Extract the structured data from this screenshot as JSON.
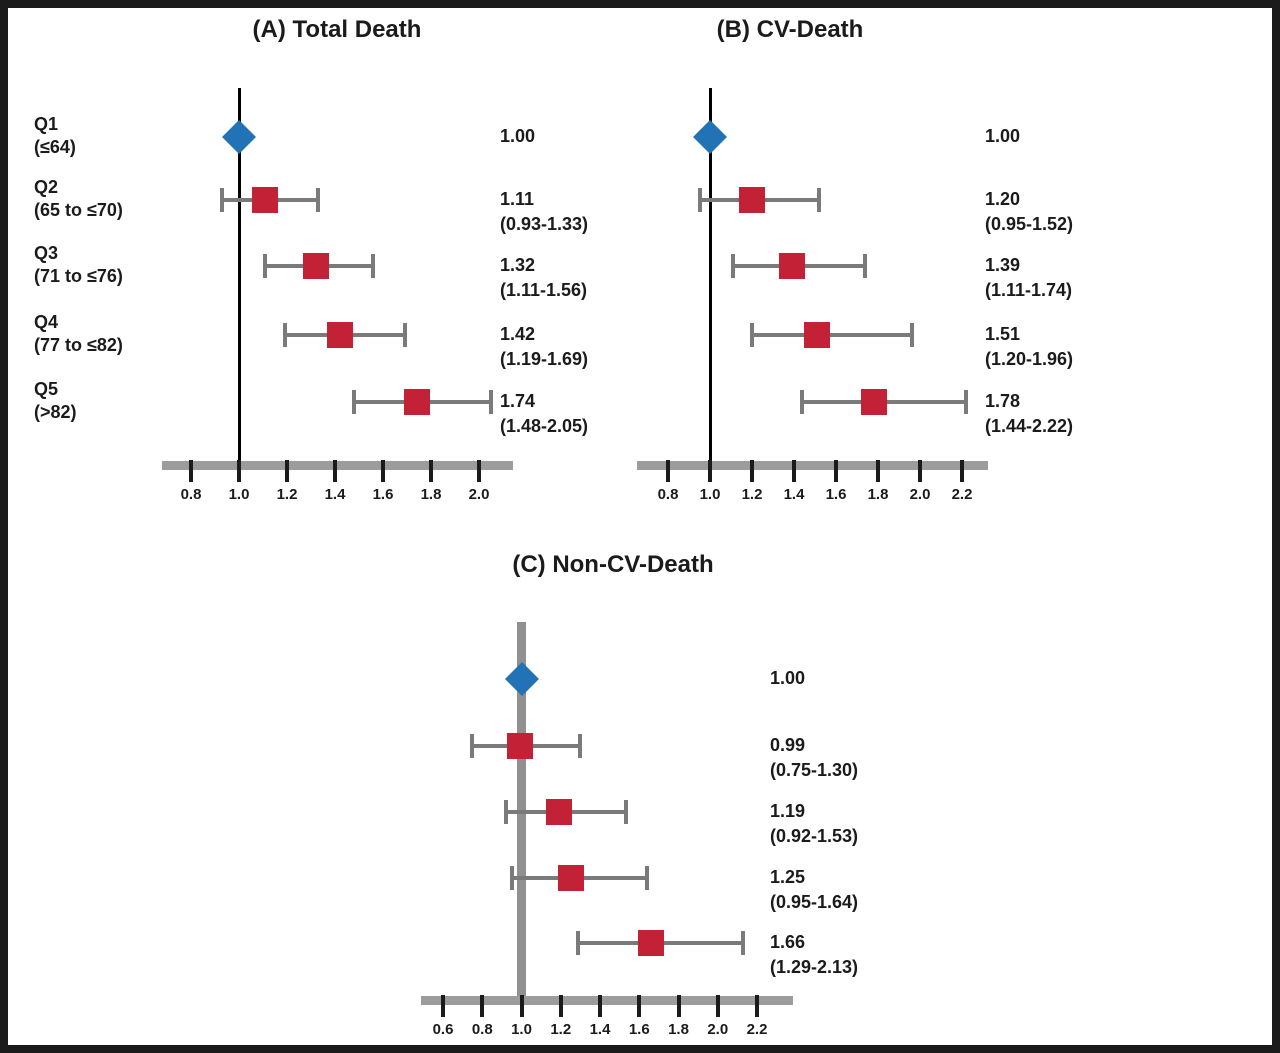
{
  "figure": {
    "type": "forest-plot-figure",
    "background": "#ffffff",
    "frame_color": "#1b1b1b",
    "colors": {
      "reference_diamond": "#2173b6",
      "estimate_square": "#c32136",
      "whisker": "#7a7a7a",
      "axis_bar": "#9c9c9c",
      "tick": "#1b1b1b",
      "text": "#1b1b1b",
      "reference_line": "#000000",
      "reference_line_panel_c": "#909090"
    }
  },
  "chart_data": [
    {
      "type": "scatter",
      "subtype": "forest",
      "title": "(A) Total Death",
      "categories": [
        "Q1 (≤64)",
        "Q2 (65 to ≤70)",
        "Q3 (71 to ≤76)",
        "Q4 (77 to ≤82)",
        "Q5 (>82)"
      ],
      "row_label_lines": [
        [
          "Q1",
          "(≤64)"
        ],
        [
          "Q2",
          "(65 to ≤70)"
        ],
        [
          "Q3",
          "(71 to ≤76)"
        ],
        [
          "Q4",
          "(77 to ≤82)"
        ],
        [
          "Q5",
          "(>82)"
        ]
      ],
      "estimates": [
        1.0,
        1.11,
        1.32,
        1.42,
        1.74
      ],
      "ci_low": [
        null,
        0.93,
        1.11,
        1.19,
        1.48
      ],
      "ci_high": [
        null,
        1.33,
        1.56,
        1.69,
        2.05
      ],
      "value_labels": [
        "1.00",
        "1.11",
        "1.32",
        "1.42",
        "1.74"
      ],
      "ci_labels": [
        "",
        "(0.93-1.33)",
        "(1.11-1.56)",
        "(1.19-1.69)",
        "(1.48-2.05)"
      ],
      "marker_types": [
        "diamond",
        "square",
        "square",
        "square",
        "square"
      ],
      "xtick_values": [
        0.8,
        1.0,
        1.2,
        1.4,
        1.6,
        1.8,
        2.0
      ],
      "xtick_labels": [
        "0.8",
        "1.0",
        "1.2",
        "1.4",
        "1.6",
        "1.8",
        "2.0"
      ],
      "xlim": [
        0.68,
        2.14
      ],
      "ref_value": 1.0,
      "grid": false,
      "legend": false
    },
    {
      "type": "scatter",
      "subtype": "forest",
      "title": "(B) CV-Death",
      "categories": [
        "Q1 (≤64)",
        "Q2 (65 to ≤70)",
        "Q3 (71 to ≤76)",
        "Q4 (77 to ≤82)",
        "Q5 (>82)"
      ],
      "estimates": [
        1.0,
        1.2,
        1.39,
        1.51,
        1.78
      ],
      "ci_low": [
        null,
        0.95,
        1.11,
        1.2,
        1.44
      ],
      "ci_high": [
        null,
        1.52,
        1.74,
        1.96,
        2.22
      ],
      "value_labels": [
        "1.00",
        "1.20",
        "1.39",
        "1.51",
        "1.78"
      ],
      "ci_labels": [
        "",
        "(0.95-1.52)",
        "(1.11-1.74)",
        "(1.20-1.96)",
        "(1.44-2.22)"
      ],
      "marker_types": [
        "diamond",
        "square",
        "square",
        "square",
        "square"
      ],
      "xtick_values": [
        0.8,
        1.0,
        1.2,
        1.4,
        1.6,
        1.8,
        2.0,
        2.2
      ],
      "xtick_labels": [
        "0.8",
        "1.0",
        "1.2",
        "1.4",
        "1.6",
        "1.8",
        "2.0",
        "2.2"
      ],
      "xlim": [
        0.7,
        2.32
      ],
      "ref_value": 1.0,
      "grid": false,
      "legend": false
    },
    {
      "type": "scatter",
      "subtype": "forest",
      "title": "(C) Non-CV-Death",
      "categories": [
        "Q1 (≤64)",
        "Q2 (65 to ≤70)",
        "Q3 (71 to ≤76)",
        "Q4 (77 to ≤82)",
        "Q5 (>82)"
      ],
      "estimates": [
        1.0,
        0.99,
        1.19,
        1.25,
        1.66
      ],
      "ci_low": [
        null,
        0.75,
        0.92,
        0.95,
        1.29
      ],
      "ci_high": [
        null,
        1.3,
        1.53,
        1.64,
        2.13
      ],
      "value_labels": [
        "1.00",
        "0.99",
        "1.19",
        "1.25",
        "1.66"
      ],
      "ci_labels": [
        "",
        "(0.75-1.30)",
        "(0.92-1.53)",
        "(0.95-1.64)",
        "(1.29-2.13)"
      ],
      "marker_types": [
        "diamond",
        "square",
        "square",
        "square",
        "square"
      ],
      "xtick_values": [
        0.6,
        0.8,
        1.0,
        1.2,
        1.4,
        1.6,
        1.8,
        2.0,
        2.2
      ],
      "xtick_labels": [
        "0.6",
        "0.8",
        "1.0",
        "1.2",
        "1.4",
        "1.6",
        "1.8",
        "2.0",
        "2.2"
      ],
      "xlim": [
        0.5,
        2.32
      ],
      "ref_value": 1.0,
      "grid": false,
      "legend": false
    }
  ]
}
